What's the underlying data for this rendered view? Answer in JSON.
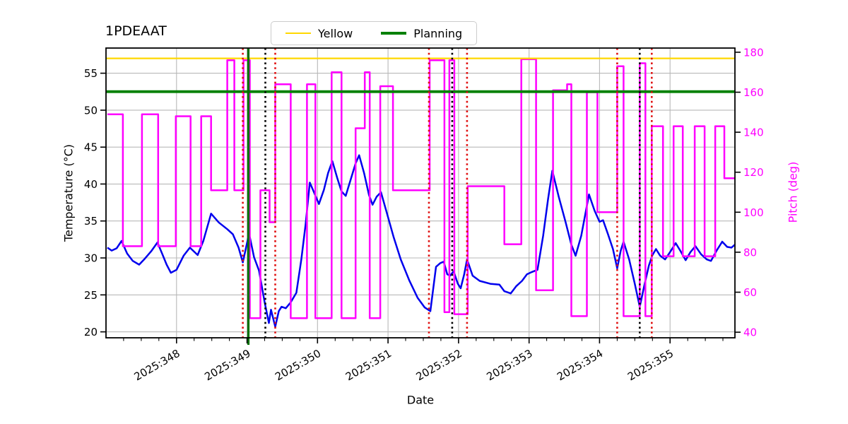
{
  "title": "1PDEAAT",
  "legend": {
    "items": [
      {
        "label": "Yellow",
        "color": "#ffd700",
        "width": 2.5
      },
      {
        "label": "Planning",
        "color": "#008000",
        "width": 4
      }
    ]
  },
  "axes": {
    "x": {
      "label": "Date"
    },
    "y_left": {
      "label": "Temperature (°C)",
      "color": "#000000"
    },
    "y_right": {
      "label": "Pitch (deg)",
      "color": "#ff00ff"
    }
  },
  "chart_data": {
    "type": "line",
    "title": "1PDEAAT",
    "xlabel": "Date",
    "ylabel_left": "Temperature (°C)",
    "ylabel_right": "Pitch (deg)",
    "xlim": [
      347.0,
      355.92
    ],
    "ylim_left": [
      19.2,
      58.4
    ],
    "ylim_right": [
      37.2,
      182.1
    ],
    "grid": true,
    "grid_color": "#b8b8b8",
    "x_major_ticks": [
      348,
      349,
      350,
      351,
      352,
      353,
      354,
      355
    ],
    "x_tick_labels": [
      "2025:348",
      "2025:349",
      "2025:350",
      "2025:351",
      "2025:352",
      "2025:353",
      "2025:354",
      "2025:355"
    ],
    "x_minor_tick_step": 0.25,
    "y_left_ticks": [
      20,
      25,
      30,
      35,
      40,
      45,
      50,
      55
    ],
    "y_left_tick_labels": [
      "20",
      "25",
      "30",
      "35",
      "40",
      "45",
      "50",
      "55"
    ],
    "y_right_ticks": [
      40,
      60,
      80,
      100,
      120,
      140,
      160,
      180
    ],
    "y_right_tick_labels": [
      "40",
      "60",
      "80",
      "100",
      "120",
      "140",
      "160",
      "180"
    ],
    "series": [
      {
        "name": "temperature",
        "axis": "left",
        "color": "#0000ee",
        "width": 2.5,
        "points": [
          [
            347.02,
            31.4
          ],
          [
            347.08,
            31.0
          ],
          [
            347.15,
            31.3
          ],
          [
            347.22,
            32.3
          ],
          [
            347.3,
            30.6
          ],
          [
            347.38,
            29.6
          ],
          [
            347.47,
            29.1
          ],
          [
            347.55,
            29.9
          ],
          [
            347.64,
            30.9
          ],
          [
            347.73,
            32.1
          ],
          [
            347.8,
            30.5
          ],
          [
            347.86,
            29.1
          ],
          [
            347.92,
            28.0
          ],
          [
            348.0,
            28.4
          ],
          [
            348.1,
            30.3
          ],
          [
            348.19,
            31.4
          ],
          [
            348.3,
            30.4
          ],
          [
            348.38,
            32.3
          ],
          [
            348.49,
            36.0
          ],
          [
            348.6,
            34.8
          ],
          [
            348.72,
            33.9
          ],
          [
            348.8,
            33.2
          ],
          [
            348.88,
            31.4
          ],
          [
            348.94,
            29.4
          ],
          [
            349.03,
            33.3
          ],
          [
            349.1,
            30.1
          ],
          [
            349.17,
            28.3
          ],
          [
            349.25,
            24.0
          ],
          [
            349.31,
            21.2
          ],
          [
            349.34,
            23.0
          ],
          [
            349.4,
            20.7
          ],
          [
            349.45,
            22.8
          ],
          [
            349.49,
            23.4
          ],
          [
            349.55,
            23.2
          ],
          [
            349.62,
            24.0
          ],
          [
            349.7,
            25.3
          ],
          [
            349.77,
            29.8
          ],
          [
            349.83,
            34.5
          ],
          [
            349.89,
            40.2
          ],
          [
            349.95,
            38.9
          ],
          [
            350.02,
            37.3
          ],
          [
            350.09,
            39.2
          ],
          [
            350.15,
            41.5
          ],
          [
            350.21,
            43.1
          ],
          [
            350.28,
            40.8
          ],
          [
            350.34,
            39.0
          ],
          [
            350.4,
            38.4
          ],
          [
            350.47,
            40.6
          ],
          [
            350.54,
            42.8
          ],
          [
            350.59,
            43.9
          ],
          [
            350.66,
            41.5
          ],
          [
            350.73,
            38.5
          ],
          [
            350.78,
            37.2
          ],
          [
            350.84,
            38.3
          ],
          [
            350.9,
            38.9
          ],
          [
            350.98,
            36.2
          ],
          [
            351.08,
            32.8
          ],
          [
            351.18,
            29.8
          ],
          [
            351.3,
            27.0
          ],
          [
            351.42,
            24.6
          ],
          [
            351.52,
            23.3
          ],
          [
            351.6,
            22.8
          ],
          [
            351.68,
            28.8
          ],
          [
            351.74,
            29.3
          ],
          [
            351.79,
            29.5
          ],
          [
            351.84,
            27.8
          ],
          [
            351.88,
            27.6
          ],
          [
            351.93,
            28.2
          ],
          [
            351.99,
            26.5
          ],
          [
            352.03,
            25.9
          ],
          [
            352.08,
            27.8
          ],
          [
            352.12,
            29.8
          ],
          [
            352.2,
            27.6
          ],
          [
            352.3,
            26.9
          ],
          [
            352.45,
            26.5
          ],
          [
            352.58,
            26.4
          ],
          [
            352.65,
            25.5
          ],
          [
            352.74,
            25.2
          ],
          [
            352.82,
            26.2
          ],
          [
            352.9,
            26.9
          ],
          [
            352.97,
            27.8
          ],
          [
            353.04,
            28.1
          ],
          [
            353.12,
            28.4
          ],
          [
            353.2,
            33.0
          ],
          [
            353.27,
            38.0
          ],
          [
            353.33,
            41.8
          ],
          [
            353.42,
            38.3
          ],
          [
            353.52,
            34.8
          ],
          [
            353.6,
            31.8
          ],
          [
            353.66,
            30.3
          ],
          [
            353.74,
            33.0
          ],
          [
            353.85,
            38.6
          ],
          [
            353.93,
            36.4
          ],
          [
            354.0,
            34.9
          ],
          [
            354.05,
            35.1
          ],
          [
            354.12,
            33.2
          ],
          [
            354.19,
            31.2
          ],
          [
            354.25,
            28.6
          ],
          [
            354.3,
            31.0
          ],
          [
            354.34,
            32.2
          ],
          [
            354.42,
            29.8
          ],
          [
            354.5,
            26.5
          ],
          [
            354.57,
            23.4
          ],
          [
            354.64,
            26.5
          ],
          [
            354.7,
            29.0
          ],
          [
            354.75,
            30.4
          ],
          [
            354.8,
            31.2
          ],
          [
            354.86,
            30.3
          ],
          [
            354.93,
            29.8
          ],
          [
            355.0,
            30.8
          ],
          [
            355.08,
            32.0
          ],
          [
            355.15,
            30.9
          ],
          [
            355.22,
            29.7
          ],
          [
            355.29,
            30.8
          ],
          [
            355.36,
            31.6
          ],
          [
            355.44,
            30.5
          ],
          [
            355.52,
            29.8
          ],
          [
            355.58,
            29.6
          ],
          [
            355.66,
            31.0
          ],
          [
            355.74,
            32.2
          ],
          [
            355.81,
            31.5
          ],
          [
            355.87,
            31.4
          ],
          [
            355.92,
            31.8
          ]
        ]
      },
      {
        "name": "pitch",
        "axis": "right",
        "color": "#ff00ff",
        "width": 2.5,
        "step": true,
        "points": [
          [
            347.02,
            149
          ],
          [
            347.24,
            83
          ],
          [
            347.51,
            149
          ],
          [
            347.74,
            83
          ],
          [
            347.99,
            148
          ],
          [
            348.2,
            83
          ],
          [
            348.35,
            148
          ],
          [
            348.49,
            111
          ],
          [
            348.72,
            176
          ],
          [
            348.82,
            111
          ],
          [
            348.95,
            176
          ],
          [
            349.04,
            47
          ],
          [
            349.19,
            111
          ],
          [
            349.32,
            95
          ],
          [
            349.4,
            164
          ],
          [
            349.62,
            47
          ],
          [
            349.85,
            164
          ],
          [
            349.97,
            47
          ],
          [
            350.2,
            170
          ],
          [
            350.34,
            47
          ],
          [
            350.54,
            142
          ],
          [
            350.67,
            170
          ],
          [
            350.74,
            47
          ],
          [
            350.89,
            163
          ],
          [
            351.07,
            111
          ],
          [
            351.59,
            176
          ],
          [
            351.8,
            50
          ],
          [
            351.87,
            176
          ],
          [
            351.94,
            49
          ],
          [
            352.13,
            113
          ],
          [
            352.65,
            84
          ],
          [
            352.89,
            176.5
          ],
          [
            353.1,
            61
          ],
          [
            353.34,
            161
          ],
          [
            353.54,
            164
          ],
          [
            353.6,
            48
          ],
          [
            353.82,
            160
          ],
          [
            353.97,
            100
          ],
          [
            354.25,
            173
          ],
          [
            354.34,
            48
          ],
          [
            354.57,
            174.5
          ],
          [
            354.65,
            48
          ],
          [
            354.74,
            143
          ],
          [
            354.9,
            78
          ],
          [
            355.05,
            143
          ],
          [
            355.18,
            78
          ],
          [
            355.35,
            143
          ],
          [
            355.49,
            78
          ],
          [
            355.64,
            143
          ],
          [
            355.77,
            117
          ],
          [
            355.92,
            117
          ]
        ]
      }
    ],
    "limit_lines": [
      {
        "name": "Yellow",
        "axis": "left",
        "value": 57.0,
        "color": "#ffd700",
        "width": 2.2
      },
      {
        "name": "Planning",
        "axis": "left",
        "value": 52.5,
        "color": "#008000",
        "width": 3.8
      }
    ],
    "event_lines": [
      {
        "x": 348.94,
        "color": "#e01010",
        "style": "dotted"
      },
      {
        "x": 349.02,
        "color": "#007000",
        "style": "solid"
      },
      {
        "x": 349.26,
        "color": "#000000",
        "style": "dotted"
      },
      {
        "x": 349.4,
        "color": "#e01010",
        "style": "dotted"
      },
      {
        "x": 351.58,
        "color": "#e01010",
        "style": "dotted"
      },
      {
        "x": 351.91,
        "color": "#000000",
        "style": "dotted"
      },
      {
        "x": 352.12,
        "color": "#e01010",
        "style": "dotted"
      },
      {
        "x": 354.25,
        "color": "#e01010",
        "style": "dotted"
      },
      {
        "x": 354.57,
        "color": "#000000",
        "style": "dotted"
      },
      {
        "x": 354.74,
        "color": "#e01010",
        "style": "dotted"
      }
    ]
  }
}
